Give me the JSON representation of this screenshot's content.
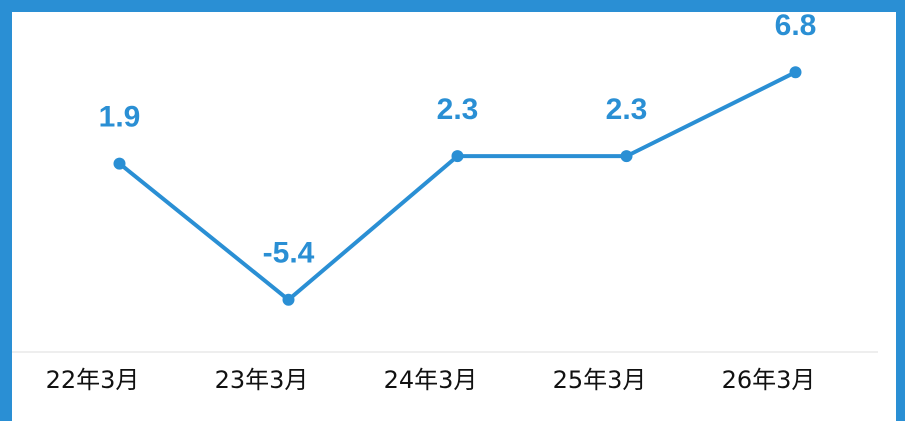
{
  "chart_data": {
    "type": "line",
    "categories": [
      "22年3月",
      "23年3月",
      "24年3月",
      "25年3月",
      "26年3月"
    ],
    "values": [
      1.9,
      -5.4,
      2.3,
      2.3,
      6.8
    ],
    "color": "#2a8fd4",
    "ylim": [
      -8.2,
      9.6
    ]
  }
}
